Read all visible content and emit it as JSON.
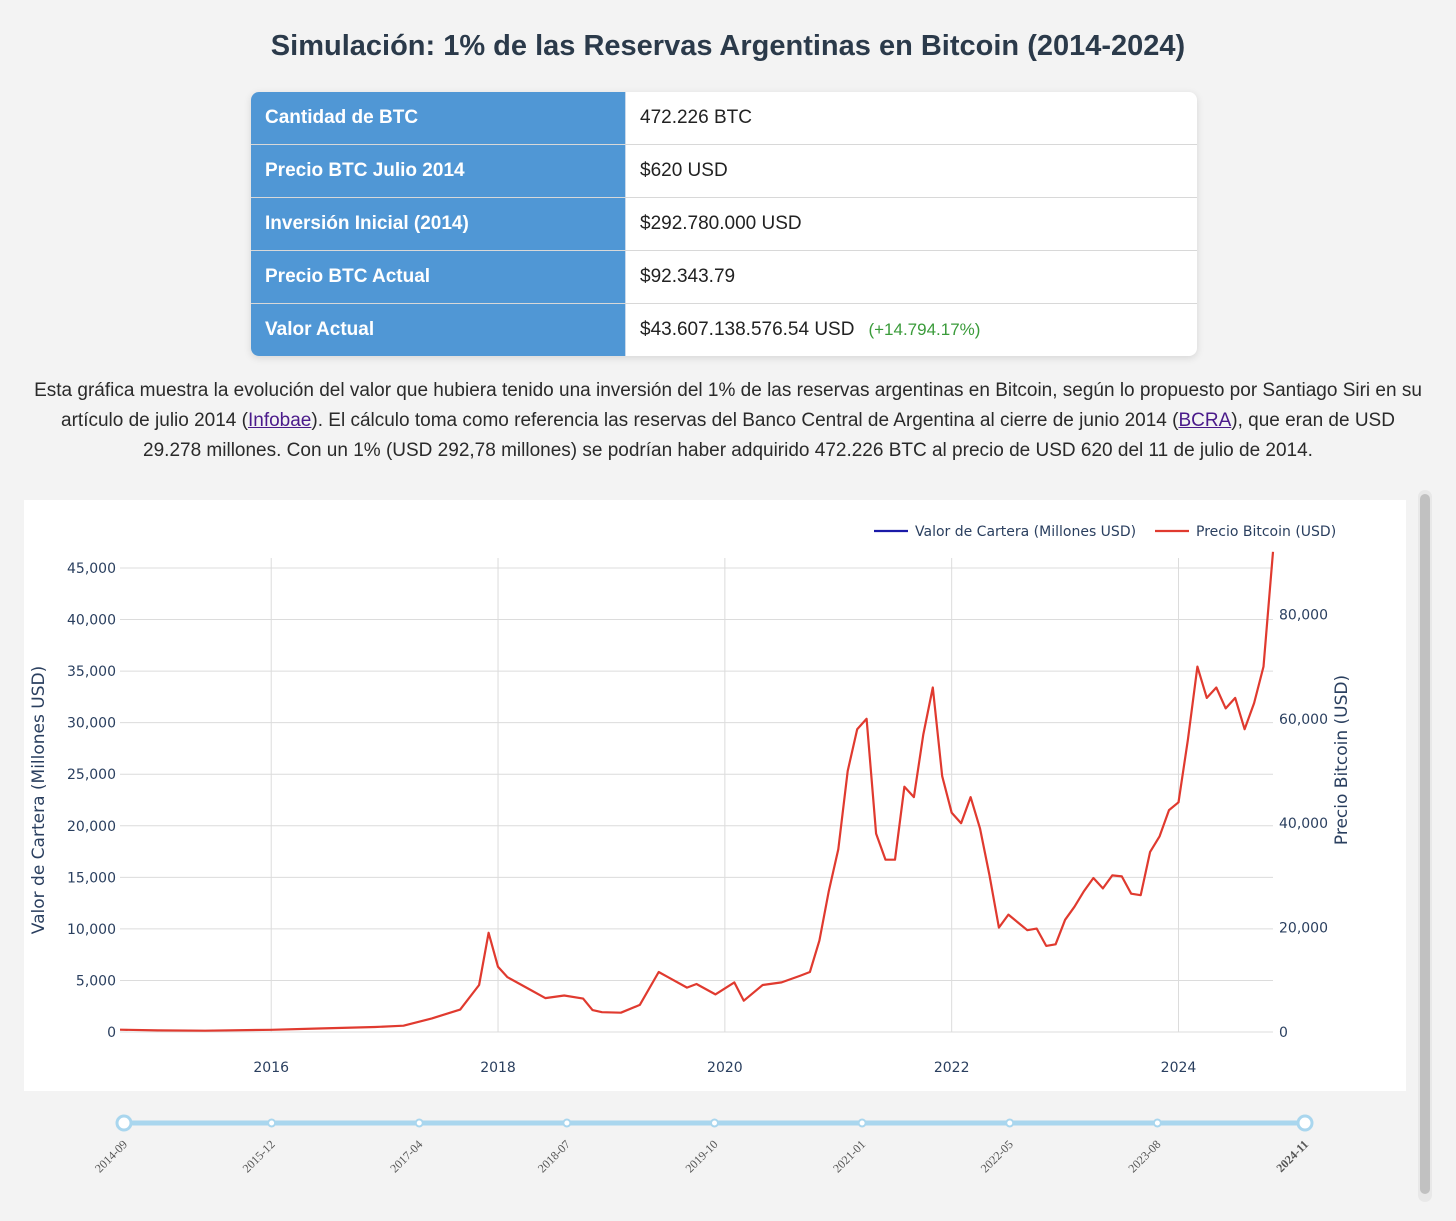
{
  "title": "Simulación: 1% de las Reservas Argentinas en Bitcoin (2014-2024)",
  "summary": {
    "rows": [
      {
        "label": "Cantidad de BTC",
        "value": "472.226 BTC"
      },
      {
        "label": "Precio BTC Julio 2014",
        "value": "$620 USD"
      },
      {
        "label": "Inversión Inicial (2014)",
        "value": "$292.780.000 USD"
      },
      {
        "label": "Precio BTC Actual",
        "value": "$92.343.79"
      },
      {
        "label": "Valor Actual",
        "value": "$43.607.138.576.54 USD"
      }
    ],
    "change": "(+14.794.17%)"
  },
  "description": {
    "part1": "Esta gráfica muestra la evolución del valor que hubiera tenido una inversión del 1% de las reservas argentinas en Bitcoin, según lo propuesto por Santiago Siri en su artículo de julio 2014 (",
    "link1": "Infobae",
    "part2": "). El cálculo toma como referencia las reservas del Banco Central de Argentina al cierre de junio 2014 (",
    "link2": "BCRA",
    "part3": "), que eran de USD 29.278 millones. Con un 1% (USD 292,78 millones) se podrían haber adquirido 472.226 BTC al precio de USD 620 del 11 de julio de 2014."
  },
  "colors": {
    "portfolio": "#1a1aa8",
    "bitcoin": "#e03a2f",
    "header_cell": "#5097d5",
    "positive": "#3a9b3a",
    "slider": "#a9d6ee"
  },
  "chart_data": {
    "type": "line",
    "x_range": [
      "2014-09",
      "2024-11"
    ],
    "y_left_label": "Valor de Cartera (Millones USD)",
    "y_right_label": "Precio Bitcoin (USD)",
    "y_left_range": [
      0,
      45000
    ],
    "y_right_range": [
      0,
      80000
    ],
    "y_left_ticks": [
      "0",
      "5,000",
      "10,000",
      "15,000",
      "20,000",
      "25,000",
      "30,000",
      "35,000",
      "40,000",
      "45,000"
    ],
    "y_right_ticks": [
      "0",
      "20,000",
      "40,000",
      "60,000",
      "80,000"
    ],
    "x_ticks": [
      "2016",
      "2018",
      "2020",
      "2022",
      "2024"
    ],
    "grid": true,
    "legend_position": "top-right",
    "series": [
      {
        "name": "Valor de Cartera (Millones USD)",
        "axis": "left",
        "x": [],
        "values": []
      },
      {
        "name": "Precio Bitcoin (USD)",
        "axis": "right",
        "x": [
          "2014-09",
          "2015-01",
          "2015-06",
          "2016-01",
          "2016-06",
          "2016-12",
          "2017-03",
          "2017-06",
          "2017-09",
          "2017-11",
          "2017-12",
          "2018-01",
          "2018-02",
          "2018-04",
          "2018-06",
          "2018-08",
          "2018-10",
          "2018-11",
          "2018-12",
          "2019-02",
          "2019-04",
          "2019-06",
          "2019-07",
          "2019-09",
          "2019-10",
          "2019-12",
          "2020-02",
          "2020-03",
          "2020-05",
          "2020-07",
          "2020-09",
          "2020-10",
          "2020-11",
          "2020-12",
          "2021-01",
          "2021-02",
          "2021-03",
          "2021-04",
          "2021-05",
          "2021-06",
          "2021-07",
          "2021-08",
          "2021-09",
          "2021-10",
          "2021-11",
          "2021-12",
          "2022-01",
          "2022-02",
          "2022-03",
          "2022-04",
          "2022-05",
          "2022-06",
          "2022-07",
          "2022-08",
          "2022-09",
          "2022-10",
          "2022-11",
          "2022-12",
          "2023-01",
          "2023-02",
          "2023-03",
          "2023-04",
          "2023-05",
          "2023-06",
          "2023-07",
          "2023-08",
          "2023-09",
          "2023-10",
          "2023-11",
          "2023-12",
          "2024-01",
          "2024-02",
          "2024-03",
          "2024-04",
          "2024-05",
          "2024-06",
          "2024-07",
          "2024-08",
          "2024-09",
          "2024-10",
          "2024-11"
        ],
        "values": [
          450,
          300,
          240,
          430,
          670,
          960,
          1200,
          2600,
          4300,
          9000,
          19000,
          12500,
          10500,
          8500,
          6500,
          7000,
          6400,
          4200,
          3800,
          3700,
          5200,
          11500,
          10500,
          8500,
          9200,
          7200,
          9500,
          6000,
          9000,
          9500,
          10800,
          11500,
          17500,
          27000,
          35000,
          50000,
          58000,
          60000,
          38000,
          33000,
          33000,
          47000,
          45000,
          57000,
          66000,
          49000,
          42000,
          40000,
          45000,
          39000,
          30000,
          20000,
          22500,
          21000,
          19500,
          19800,
          16500,
          16800,
          21500,
          24000,
          27000,
          29500,
          27500,
          30000,
          29800,
          26500,
          26200,
          34500,
          37500,
          42500,
          44000,
          56000,
          70000,
          64000,
          66000,
          62000,
          64000,
          58000,
          63000,
          70000,
          92000
        ]
      }
    ]
  },
  "slider": {
    "labels": [
      "2014-09",
      "2015-12",
      "2017-04",
      "2018-07",
      "2019-10",
      "2021-01",
      "2022-05",
      "2023-08",
      "2024-11"
    ]
  }
}
